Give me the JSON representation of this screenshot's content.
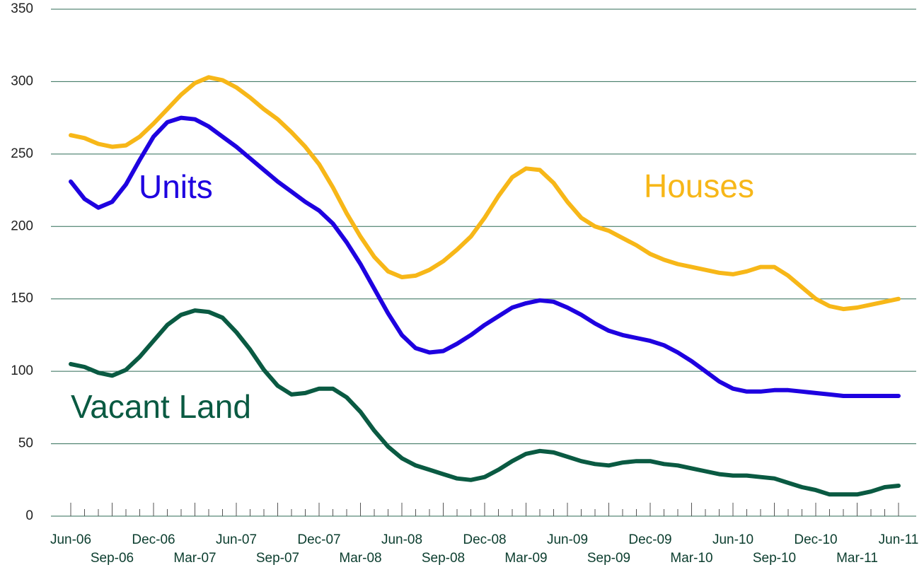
{
  "chart_data": {
    "type": "line",
    "categories": [
      "Jun-06",
      null,
      null,
      "Sep-06",
      null,
      null,
      "Dec-06",
      null,
      null,
      "Mar-07",
      null,
      null,
      "Jun-07",
      null,
      null,
      "Sep-07",
      null,
      null,
      "Dec-07",
      null,
      null,
      "Mar-08",
      null,
      null,
      "Jun-08",
      null,
      null,
      "Sep-08",
      null,
      null,
      "Dec-08",
      null,
      null,
      "Mar-09",
      null,
      null,
      "Jun-09",
      null,
      null,
      "Sep-09",
      null,
      null,
      "Dec-09",
      null,
      null,
      "Mar-10",
      null,
      null,
      "Jun-10",
      null,
      null,
      "Sep-10",
      null,
      null,
      "Dec-10",
      null,
      null,
      "Mar-11",
      null,
      null,
      "Jun-11"
    ],
    "series": [
      {
        "name": "Houses",
        "color": "#f7b718",
        "values": [
          263,
          261,
          257,
          255,
          256,
          262,
          271,
          281,
          291,
          299,
          303,
          301,
          296,
          289,
          281,
          274,
          265,
          255,
          243,
          227,
          209,
          193,
          179,
          169,
          165,
          166,
          170,
          176,
          184,
          193,
          206,
          221,
          234,
          240,
          239,
          230,
          217,
          206,
          200,
          197,
          192,
          187,
          181,
          177,
          174,
          172,
          170,
          168,
          167,
          169,
          172,
          172,
          166,
          158,
          150,
          145,
          143,
          144,
          146,
          148,
          150
        ]
      },
      {
        "name": "Units",
        "color": "#1e00e0",
        "values": [
          231,
          219,
          213,
          217,
          229,
          246,
          262,
          272,
          275,
          274,
          269,
          262,
          255,
          247,
          239,
          231,
          224,
          217,
          211,
          202,
          189,
          174,
          157,
          140,
          125,
          116,
          113,
          114,
          119,
          125,
          132,
          138,
          144,
          147,
          149,
          148,
          144,
          139,
          133,
          128,
          125,
          123,
          121,
          118,
          113,
          107,
          100,
          93,
          88,
          86,
          86,
          87,
          87,
          86,
          85,
          84,
          83,
          83,
          83,
          83,
          83
        ]
      },
      {
        "name": "Vacant Land",
        "color": "#0a5a42",
        "values": [
          105,
          103,
          99,
          97,
          101,
          110,
          121,
          132,
          139,
          142,
          141,
          137,
          127,
          115,
          101,
          90,
          84,
          85,
          88,
          88,
          82,
          72,
          59,
          48,
          40,
          35,
          32,
          29,
          26,
          25,
          27,
          32,
          38,
          43,
          45,
          44,
          41,
          38,
          36,
          35,
          37,
          38,
          38,
          36,
          35,
          33,
          31,
          29,
          28,
          28,
          27,
          26,
          23,
          20,
          18,
          15,
          15,
          15,
          17,
          20,
          21
        ]
      }
    ],
    "ylim": [
      0,
      350
    ],
    "yticks": [
      0,
      50,
      100,
      150,
      200,
      250,
      300,
      350
    ],
    "grid": true
  }
}
